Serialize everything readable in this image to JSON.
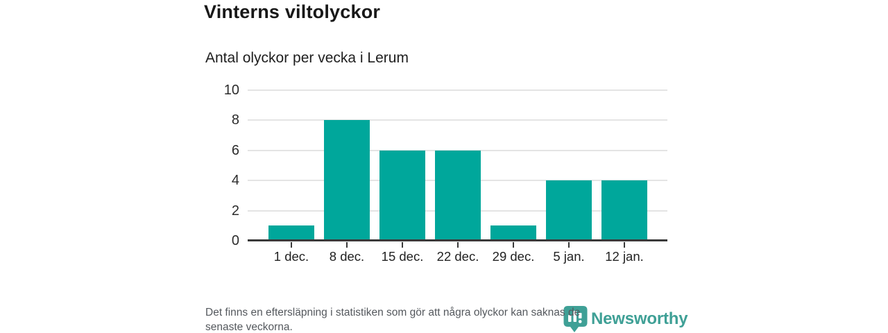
{
  "chart_data": {
    "type": "bar",
    "title": "Vinterns viltolyckor",
    "subtitle": "Antal olyckor per vecka i Lerum",
    "categories": [
      "1 dec.",
      "8 dec.",
      "15 dec.",
      "22 dec.",
      "29 dec.",
      "5 jan.",
      "12 jan."
    ],
    "values": [
      1,
      8,
      6,
      6,
      1,
      4,
      4
    ],
    "xlabel": "",
    "ylabel": "",
    "ylim": [
      0,
      10
    ],
    "yticks": [
      0,
      2,
      4,
      6,
      8,
      10
    ],
    "grid": "horizontal",
    "legend": "none",
    "bar_color": "#00a79b"
  },
  "footer": {
    "lines": [
      "Det finns en eftersläpning i statistiken som gör att några olyckor kan saknas de",
      "senaste veckorna."
    ]
  },
  "branding": {
    "logo_text": "Newsworthy",
    "logo_color": "#3fa096",
    "logo_icon": "newsworthy-pin-icon"
  },
  "colors": {
    "accent_teal": "#00a79b",
    "brand_teal": "#3fa096"
  }
}
